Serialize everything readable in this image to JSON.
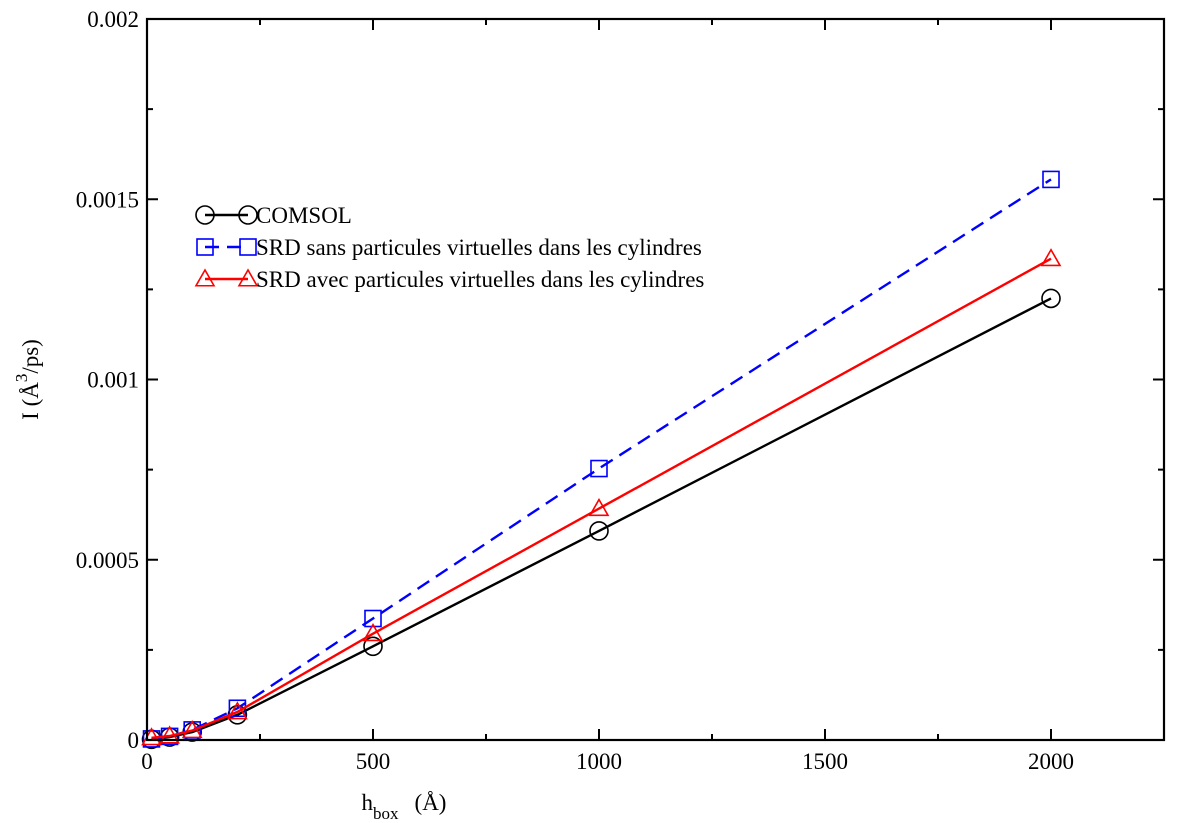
{
  "chart_data": {
    "type": "line",
    "title": "",
    "xlabel": {
      "main": "h",
      "sub": "box",
      "unit": "(Å)"
    },
    "ylabel": {
      "pre": "I (Å",
      "sup": "3",
      "post": "/ps)"
    },
    "xlim": [
      0,
      2250
    ],
    "ylim": [
      0,
      0.002
    ],
    "xticks": [
      0,
      500,
      1000,
      1500,
      2000
    ],
    "xtick_labels": [
      "0",
      "500",
      "1000",
      "1500",
      "2000"
    ],
    "yticks": [
      0,
      0.0005,
      0.001,
      0.0015,
      0.002
    ],
    "ytick_labels": [
      "0",
      "0.0005",
      "0.001",
      "0.0015",
      "0.002"
    ],
    "grid": false,
    "legend_position": "left",
    "series": [
      {
        "name": "COMSOL",
        "color": "#000000",
        "marker": "circle",
        "dash": "solid",
        "x": [
          10,
          50,
          100,
          200,
          500,
          1000,
          2000
        ],
        "y": [
          2e-06,
          8e-06,
          2.2e-05,
          7e-05,
          0.00026,
          0.00058,
          0.001225
        ]
      },
      {
        "name": "SRD sans particules virtuelles dans les cylindres",
        "color": "#0000ff",
        "marker": "square",
        "dash": "dashed",
        "x": [
          10,
          50,
          100,
          200,
          500,
          1000,
          2000
        ],
        "y": [
          3e-06,
          1e-05,
          2.8e-05,
          8.8e-05,
          0.000337,
          0.000753,
          0.001555
        ]
      },
      {
        "name": "SRD avec particules virtuelles dans les cylindres",
        "color": "#ff0000",
        "marker": "triangle",
        "dash": "solid",
        "x": [
          10,
          50,
          100,
          200,
          500,
          1000,
          2000
        ],
        "y": [
          6e-06,
          1.1e-05,
          2.6e-05,
          7.8e-05,
          0.000295,
          0.000642,
          0.001335
        ]
      }
    ]
  }
}
